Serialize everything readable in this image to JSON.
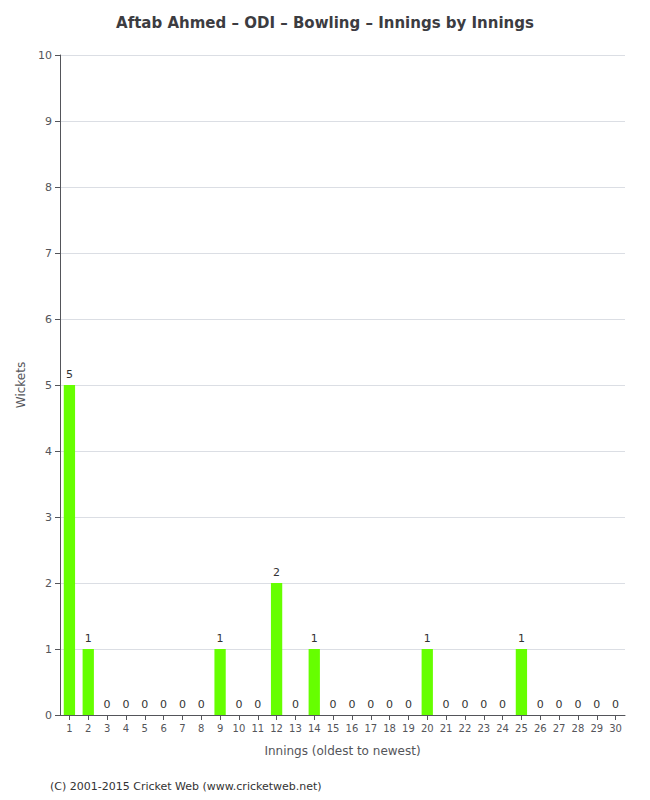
{
  "chart_data": {
    "type": "bar",
    "title": "Aftab Ahmed – ODI – Bowling – Innings by Innings",
    "x_label": "Innings (oldest to newest)",
    "y_label": "Wickets",
    "categories": [
      "1",
      "2",
      "3",
      "4",
      "5",
      "6",
      "7",
      "8",
      "9",
      "10",
      "11",
      "12",
      "13",
      "14",
      "15",
      "16",
      "17",
      "18",
      "19",
      "20",
      "21",
      "22",
      "23",
      "24",
      "25",
      "26",
      "27",
      "28",
      "29",
      "30"
    ],
    "values": [
      5,
      1,
      0,
      0,
      0,
      0,
      0,
      0,
      1,
      0,
      0,
      2,
      0,
      1,
      0,
      0,
      0,
      0,
      0,
      1,
      0,
      0,
      0,
      0,
      1,
      0,
      0,
      0,
      0,
      0
    ],
    "color": "#66ff00",
    "ylim": [
      0,
      10
    ],
    "yticks": [
      0,
      1,
      2,
      3,
      4,
      5,
      6,
      7,
      8,
      9,
      10
    ],
    "grid": true,
    "data_labels": true,
    "annotations": [
      "(C) 2001-2015 Cricket Web (www.cricketweb.net)"
    ]
  }
}
